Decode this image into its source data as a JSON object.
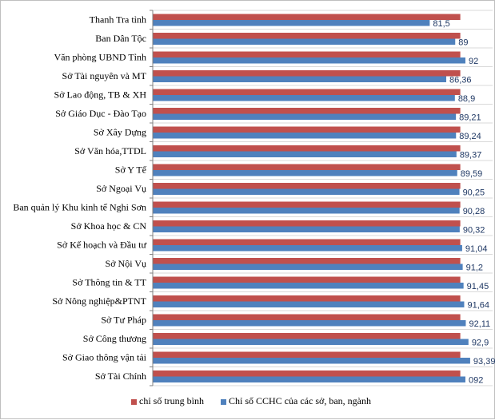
{
  "chart_data": {
    "type": "bar",
    "orientation": "horizontal",
    "title": "",
    "xlabel": "",
    "ylabel": "",
    "xlim": [
      0,
      100
    ],
    "grid": true,
    "legend_position": "bottom",
    "categories": [
      "Thanh Tra tỉnh",
      "Ban Dân Tộc",
      "Văn phòng UBND Tỉnh",
      "Sở Tài nguyên và MT",
      "Sở Lao động, TB & XH",
      "Sở Giáo Dục - Đào Tạo",
      "Sở Xây Dựng",
      "Sở Văn hóa,TTDL",
      "Sở Y Tế",
      "Sở Ngoại Vụ",
      "Ban quản lý Khu kinh tế Nghi Sơn",
      "Sở Khoa học & CN",
      "Sở Kế hoạch và Đầu tư",
      "Sở Nội Vụ",
      "Sở Thông tin & TT",
      "Sở Nông nghiệp&PTNT",
      "Sở Tư Pháp",
      "Sở Công thương",
      "Sở Giao thông vận tải",
      "Sở Tài Chính"
    ],
    "series": [
      {
        "name": "chỉ số trung bình",
        "color": "#c0504d",
        "values": [
          90.5,
          90.5,
          90.5,
          90.5,
          90.5,
          90.5,
          90.5,
          90.5,
          90.5,
          90.5,
          90.5,
          90.5,
          90.5,
          90.5,
          90.5,
          90.5,
          90.5,
          90.5,
          90.5,
          90.5
        ]
      },
      {
        "name": "Chỉ số CCHC của các sở, ban, ngành",
        "color": "#4f81bd",
        "values": [
          81.5,
          89,
          92,
          86.36,
          88.9,
          89.21,
          89.24,
          89.37,
          89.59,
          90.25,
          90.28,
          90.32,
          91.04,
          91.2,
          91.45,
          91.64,
          92.11,
          92.9,
          93.39,
          92
        ]
      }
    ],
    "data_labels": [
      "81,5",
      "89",
      "92",
      "86,36",
      "88,9",
      "89,21",
      "89,24",
      "89,37",
      "89,59",
      "90,25",
      "90,28",
      "90,32",
      "91,04",
      "91,2",
      "91,45",
      "91,64",
      "92,11",
      "92,9",
      "93,39",
      "092"
    ]
  }
}
